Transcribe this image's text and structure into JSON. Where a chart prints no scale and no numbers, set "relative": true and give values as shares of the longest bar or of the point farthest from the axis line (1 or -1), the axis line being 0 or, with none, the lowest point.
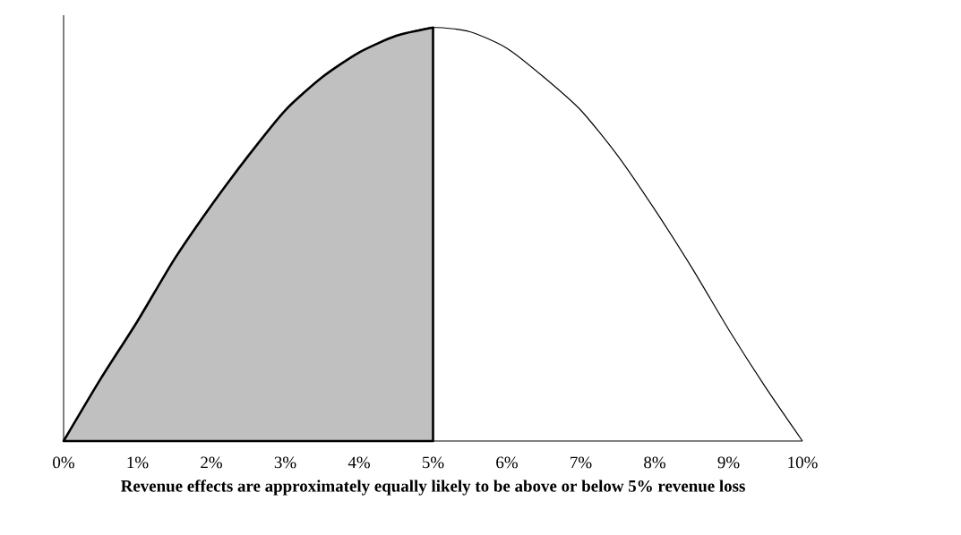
{
  "chart_data": {
    "type": "line",
    "relative": true,
    "xlabel": "Revenue effects are approximately equally likely to be above or below 5% revenue loss",
    "xlim": [
      0,
      10
    ],
    "xticks": [
      {
        "value": 0,
        "label": "0%"
      },
      {
        "value": 1,
        "label": "1%"
      },
      {
        "value": 2,
        "label": "2%"
      },
      {
        "value": 3,
        "label": "3%"
      },
      {
        "value": 4,
        "label": "4%"
      },
      {
        "value": 5,
        "label": "5%"
      },
      {
        "value": 6,
        "label": "6%"
      },
      {
        "value": 7,
        "label": "7%"
      },
      {
        "value": 8,
        "label": "8%"
      },
      {
        "value": 9,
        "label": "9%"
      },
      {
        "value": 10,
        "label": "10%"
      }
    ],
    "series": [
      {
        "type": "line",
        "color": "#000000",
        "x": [
          0,
          0.5,
          1,
          1.5,
          2,
          2.5,
          3,
          3.5,
          4,
          4.5,
          5,
          5.5,
          6,
          6.5,
          7,
          7.5,
          8,
          8.5,
          9,
          9.5,
          10
        ],
        "values": [
          0,
          0.15,
          0.29,
          0.44,
          0.57,
          0.69,
          0.8,
          0.88,
          0.94,
          0.98,
          1,
          0.99,
          0.95,
          0.88,
          0.8,
          0.69,
          0.56,
          0.42,
          0.27,
          0.13,
          0
        ]
      },
      {
        "type": "area",
        "color": "#c0c0c0",
        "x": [
          0,
          0.5,
          1,
          1.5,
          2,
          2.5,
          3,
          3.5,
          4,
          4.5,
          5
        ],
        "values": [
          0,
          0.15,
          0.29,
          0.44,
          0.57,
          0.69,
          0.8,
          0.88,
          0.94,
          0.98,
          1
        ]
      }
    ]
  }
}
